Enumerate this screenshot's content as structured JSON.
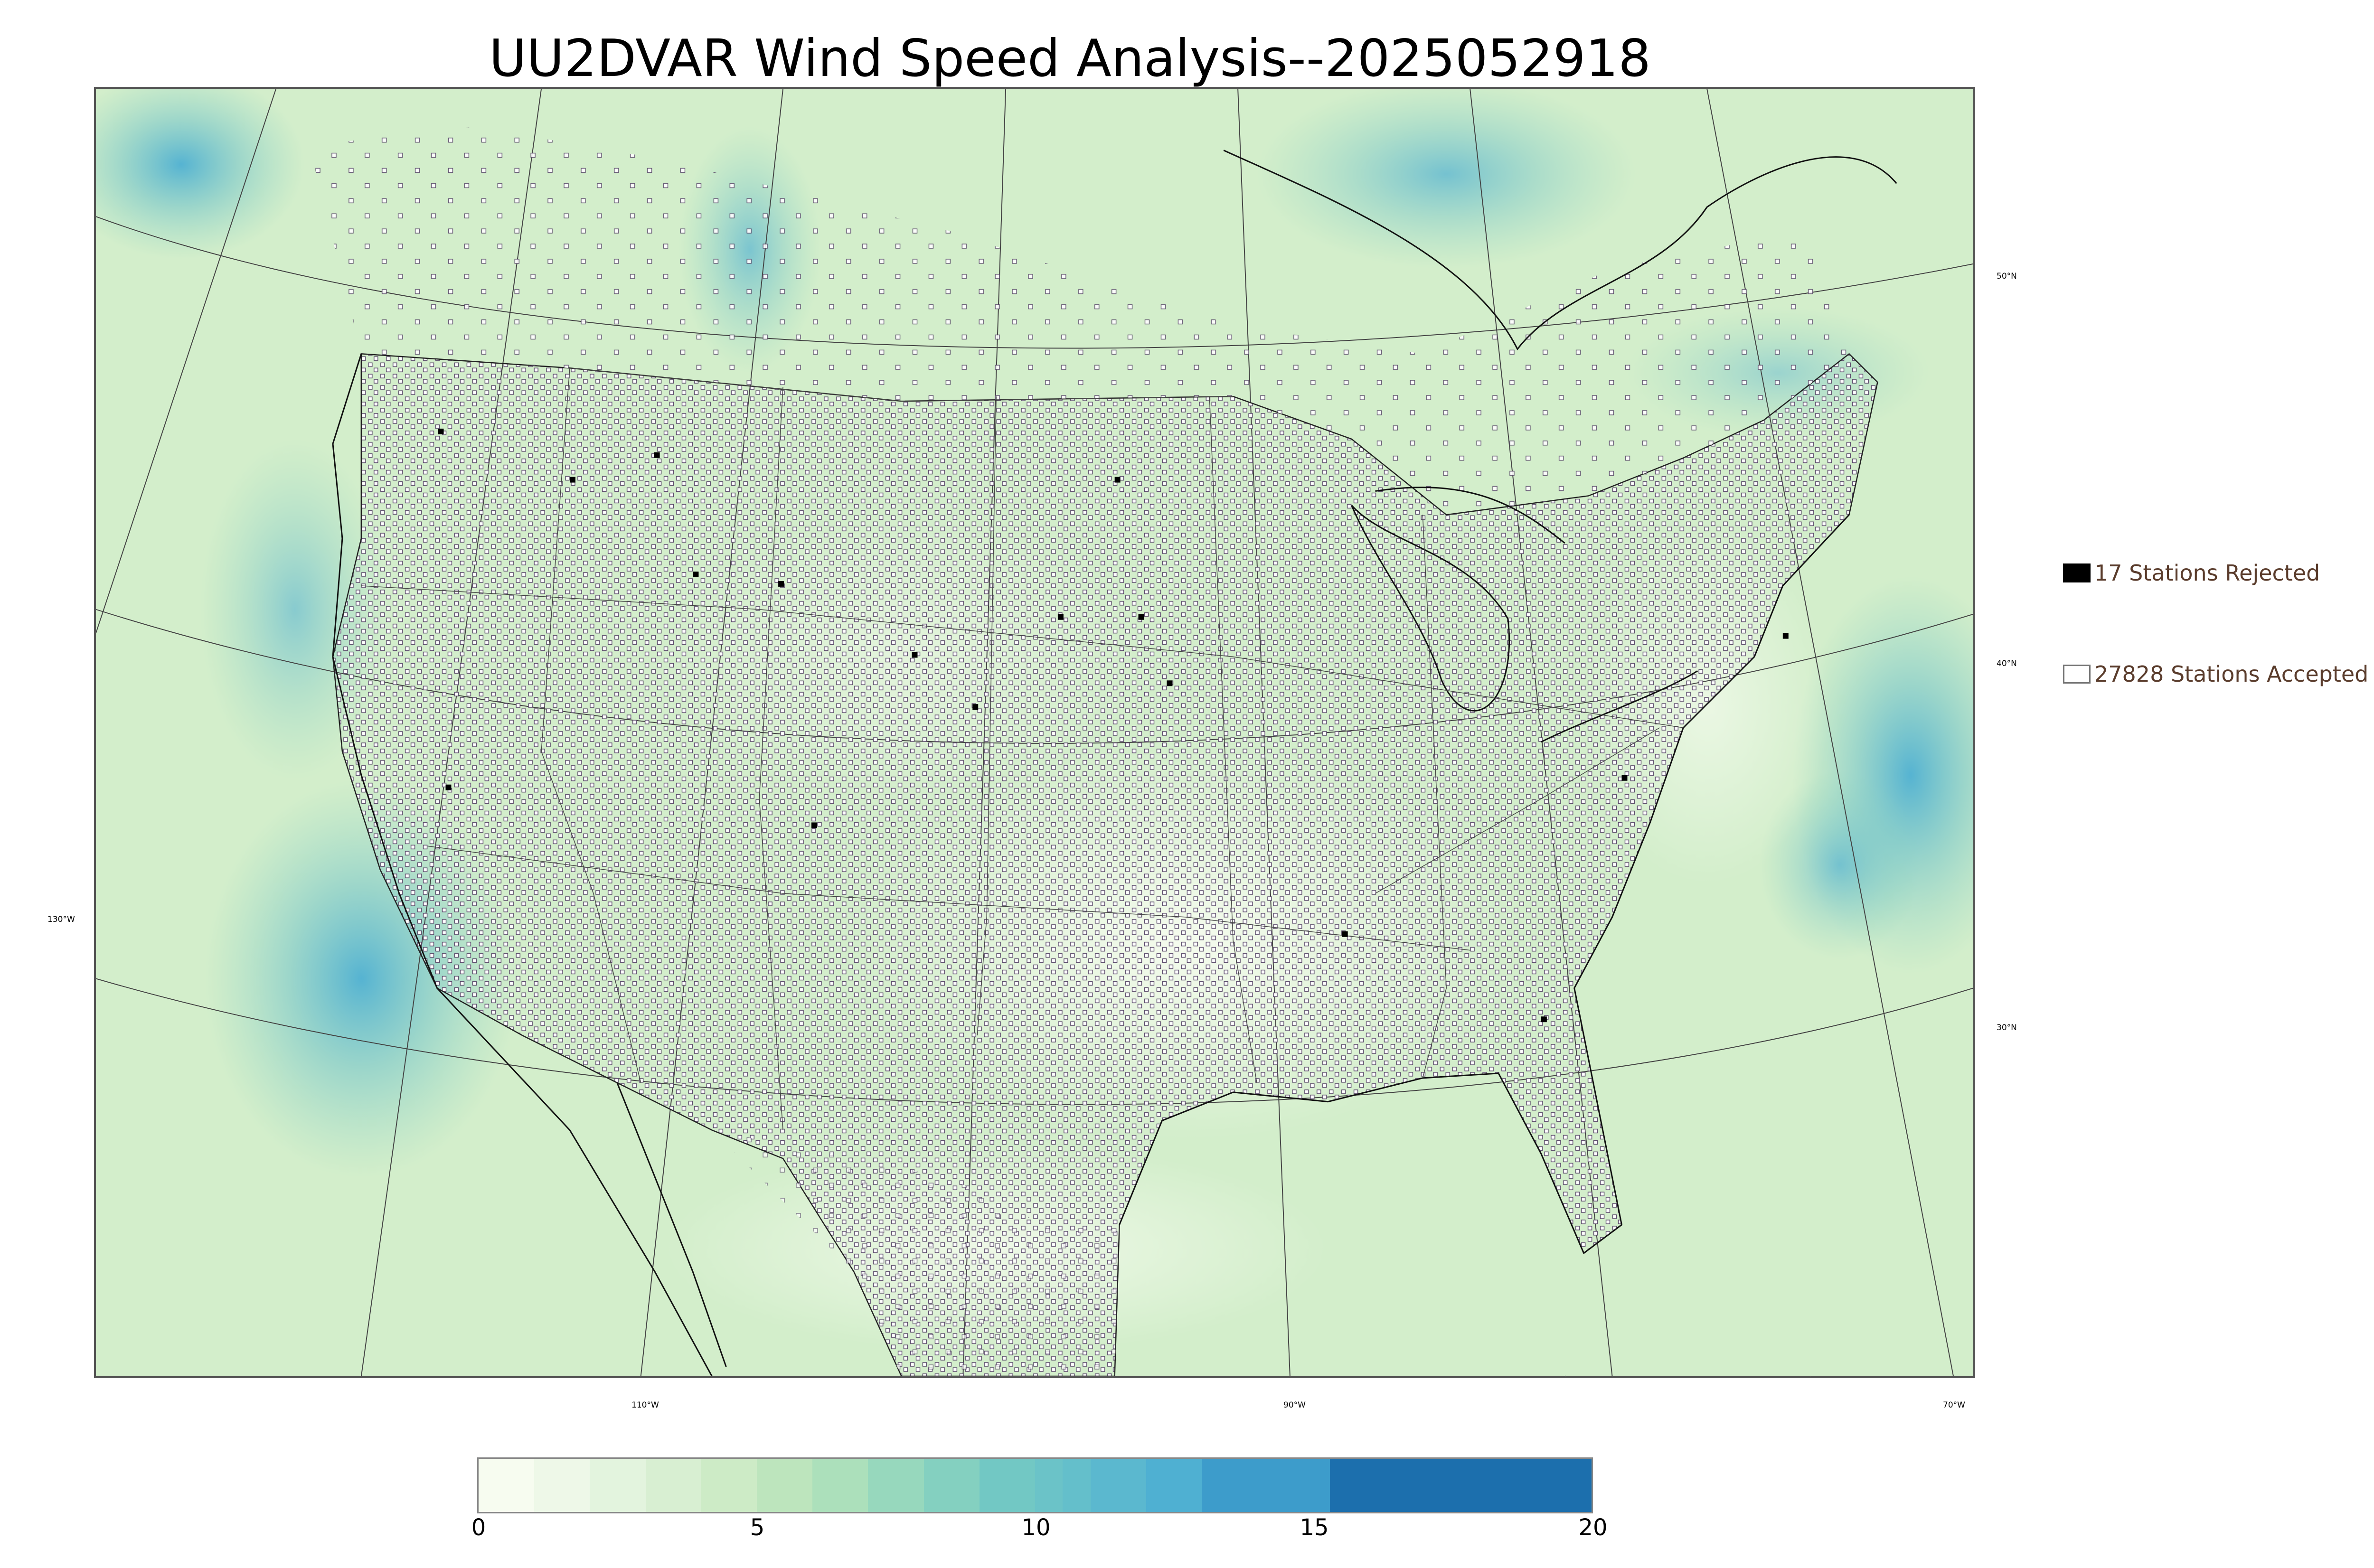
{
  "title": "UU2DVAR Wind Speed Analysis--2025052918",
  "legend": {
    "rejected": {
      "label": "17 Stations Rejected",
      "color": "#000000"
    },
    "accepted": {
      "label": "27828 Stations Accepted",
      "color": "#ffffff"
    }
  },
  "graticule": {
    "latitude_labels": [
      "50°N",
      "40°N",
      "30°N"
    ],
    "longitude_labels": [
      "130°W",
      "110°W",
      "90°W",
      "70°W"
    ]
  },
  "colorbar": {
    "ticks": [
      "0",
      "5",
      "10",
      "15",
      "20"
    ],
    "min": 0,
    "max": 20,
    "levels": [
      {
        "from": 0,
        "to": 1,
        "color": "#f7fcf0"
      },
      {
        "from": 1,
        "to": 2,
        "color": "#eef8e8"
      },
      {
        "from": 2,
        "to": 3,
        "color": "#e3f4de"
      },
      {
        "from": 3,
        "to": 4,
        "color": "#d8efd2"
      },
      {
        "from": 4,
        "to": 5,
        "color": "#cdebc6"
      },
      {
        "from": 5,
        "to": 6,
        "color": "#bde5bd"
      },
      {
        "from": 6,
        "to": 7,
        "color": "#ace0bb"
      },
      {
        "from": 7,
        "to": 8,
        "color": "#97d8bd"
      },
      {
        "from": 8,
        "to": 9,
        "color": "#84d0c0"
      },
      {
        "from": 9,
        "to": 10,
        "color": "#72c8c4"
      },
      {
        "from": 10,
        "to": 10.5,
        "color": "#6bc3c8"
      },
      {
        "from": 10.5,
        "to": 11,
        "color": "#64bfcb"
      },
      {
        "from": 11,
        "to": 12,
        "color": "#5bb8cf"
      },
      {
        "from": 12,
        "to": 13,
        "color": "#4fb0d2"
      },
      {
        "from": 13,
        "to": 15.3,
        "color": "#3d9ccb"
      },
      {
        "from": 15.3,
        "to": 20,
        "color": "#1c6fad"
      }
    ]
  },
  "map": {
    "field": "wind speed",
    "station_marker": "open square"
  }
}
